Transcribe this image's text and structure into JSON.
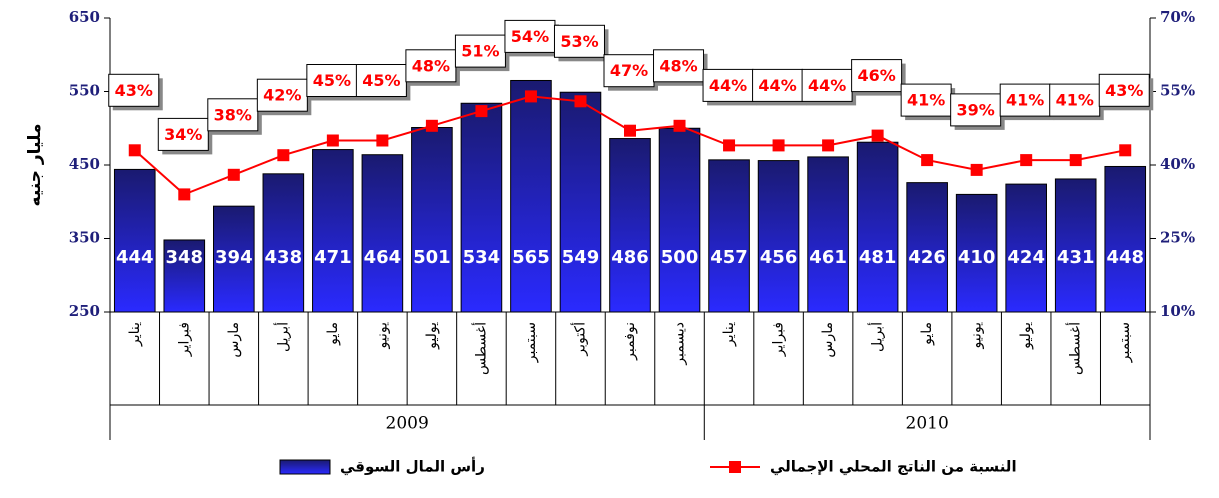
{
  "chart_data": {
    "type": "bar",
    "y_label": "مليار جنيه",
    "category_groups": [
      {
        "label": "2009",
        "categories": [
          "يناير",
          "فبراير",
          "مارس",
          "أبريل",
          "مايو",
          "يونيو",
          "يوليو",
          "أغسطس",
          "سبتمبر",
          "أكتوبر",
          "نوفمبر",
          "ديسمبر"
        ]
      },
      {
        "label": "2010",
        "categories": [
          "يناير",
          "فبراير",
          "مارس",
          "أبريل",
          "مايو",
          "يونيو",
          "يوليو",
          "أغسطس",
          "سبتمبر"
        ]
      }
    ],
    "series": [
      {
        "name": "رأس المال السوقي",
        "type": "bar",
        "color": "#2020c0",
        "values": [
          444,
          348,
          394,
          438,
          471,
          464,
          501,
          534,
          565,
          549,
          486,
          500,
          457,
          456,
          461,
          481,
          426,
          410,
          424,
          431,
          448
        ]
      },
      {
        "name": "النسبة من الناتج المحلي الإجمالي",
        "type": "line",
        "axis": "y2",
        "color": "#ff0000",
        "values": [
          43,
          34,
          38,
          42,
          45,
          45,
          48,
          51,
          54,
          53,
          47,
          48,
          44,
          44,
          44,
          46,
          41,
          39,
          41,
          41,
          43
        ],
        "value_labels": [
          "43%",
          "34%",
          "38%",
          "42%",
          "45%",
          "45%",
          "48%",
          "51%",
          "54%",
          "53%",
          "47%",
          "48%",
          "44%",
          "44%",
          "44%",
          "46%",
          "41%",
          "39%",
          "41%",
          "41%",
          "43%"
        ]
      }
    ],
    "ylim": [
      250,
      650
    ],
    "yticks": [
      250,
      350,
      450,
      550,
      650
    ],
    "y2lim": [
      10,
      70
    ],
    "y2ticks": [
      {
        "value": 10,
        "label": "10%"
      },
      {
        "value": 25,
        "label": "25%"
      },
      {
        "value": 40,
        "label": "40%"
      },
      {
        "value": 55,
        "label": "55%"
      },
      {
        "value": 70,
        "label": "70%"
      }
    ]
  }
}
